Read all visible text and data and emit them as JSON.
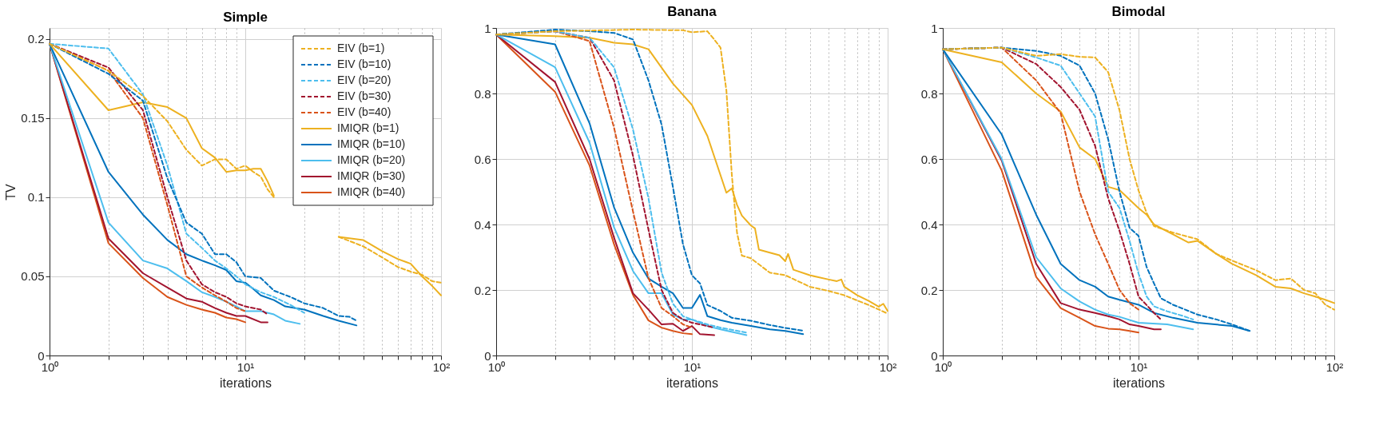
{
  "chart_data": [
    {
      "type": "line",
      "title": "Simple",
      "xlabel": "iterations",
      "ylabel": "TV",
      "log": "x",
      "grid": true,
      "legend": "top right",
      "xlim": [
        1,
        100
      ],
      "ylim": [
        0,
        0.207
      ],
      "xticks": [
        {
          "value": 1,
          "label": "10⁰"
        },
        {
          "value": 2,
          "label": null
        },
        {
          "value": 3,
          "label": null
        },
        {
          "value": 4,
          "label": null
        },
        {
          "value": 5,
          "label": null
        },
        {
          "value": 6,
          "label": null
        },
        {
          "value": 7,
          "label": null
        },
        {
          "value": 8,
          "label": null
        },
        {
          "value": 9,
          "label": null
        },
        {
          "value": 10,
          "label": "10¹"
        },
        {
          "value": 20,
          "label": null
        },
        {
          "value": 30,
          "label": null
        },
        {
          "value": 40,
          "label": null
        },
        {
          "value": 50,
          "label": null
        },
        {
          "value": 60,
          "label": null
        },
        {
          "value": 70,
          "label": null
        },
        {
          "value": 80,
          "label": null
        },
        {
          "value": 90,
          "label": null
        },
        {
          "value": 100,
          "label": "10²"
        }
      ],
      "yticks": [
        0,
        0.05,
        0.1,
        0.15,
        0.2
      ],
      "series": [
        {
          "name": "EIV (b=1)",
          "color": "#edb120",
          "line_style": "dashed",
          "x": [
            1,
            2,
            3,
            4,
            5,
            6,
            7,
            8,
            9,
            10,
            11,
            12,
            13,
            14,
            20,
            30,
            40,
            50,
            60,
            70,
            80,
            90,
            100
          ],
          "values": [
            0.197,
            0.18,
            0.164,
            0.148,
            0.13,
            0.12,
            0.124,
            0.124,
            0.118,
            0.12,
            0.116,
            0.113,
            0.105,
            0.1,
            null,
            0.075,
            0.069,
            0.062,
            0.056,
            0.053,
            0.051,
            0.047,
            0.046
          ]
        },
        {
          "name": "EIV (b=10)",
          "color": "#0072bd",
          "line_style": "dashed",
          "x": [
            1,
            2,
            3,
            4,
            5,
            6,
            7,
            8,
            9,
            10,
            12,
            14,
            17,
            20,
            25,
            30,
            34,
            37
          ],
          "values": [
            0.197,
            0.178,
            0.161,
            0.112,
            0.084,
            0.077,
            0.064,
            0.064,
            0.059,
            0.05,
            0.049,
            0.041,
            0.037,
            0.033,
            0.03,
            0.025,
            0.0245,
            0.022
          ]
        },
        {
          "name": "EIV (b=20)",
          "color": "#4dbeee",
          "line_style": "dashed",
          "x": [
            1,
            2,
            3,
            4,
            5,
            6,
            7,
            8,
            9,
            10,
            12,
            14,
            17,
            20
          ],
          "values": [
            0.197,
            0.194,
            0.165,
            0.12,
            0.077,
            0.068,
            0.06,
            0.055,
            0.05,
            0.045,
            0.04,
            0.037,
            0.032,
            0.027
          ]
        },
        {
          "name": "EIV (b=30)",
          "color": "#a2142f",
          "line_style": "dashed",
          "x": [
            1,
            2,
            3,
            4,
            5,
            6,
            7,
            8,
            9,
            10,
            12,
            13
          ],
          "values": [
            0.197,
            0.182,
            0.155,
            0.1,
            0.06,
            0.045,
            0.04,
            0.037,
            0.033,
            0.031,
            0.029,
            0.026
          ]
        },
        {
          "name": "EIV (b=40)",
          "color": "#d95319",
          "line_style": "dashed",
          "x": [
            1,
            2,
            3,
            4,
            5,
            6,
            7,
            8,
            9,
            10
          ],
          "values": [
            0.197,
            0.18,
            0.15,
            0.095,
            0.05,
            0.043,
            0.038,
            0.034,
            0.03,
            0.028
          ]
        },
        {
          "name": "IMIQR (b=1)",
          "color": "#edb120",
          "line_style": "solid",
          "x": [
            1,
            2,
            3,
            4,
            5,
            6,
            7,
            8,
            9,
            10,
            11,
            12,
            13,
            14,
            20,
            30,
            40,
            50,
            60,
            70,
            80,
            90,
            100
          ],
          "values": [
            0.197,
            0.155,
            0.16,
            0.157,
            0.15,
            0.131,
            0.125,
            0.116,
            0.117,
            0.117,
            0.118,
            0.118,
            0.11,
            0.101,
            null,
            0.075,
            0.073,
            0.066,
            0.061,
            0.058,
            0.05,
            0.044,
            0.038
          ]
        },
        {
          "name": "IMIQR (b=10)",
          "color": "#0072bd",
          "line_style": "solid",
          "x": [
            1,
            2,
            3,
            4,
            5,
            6,
            7,
            8,
            9,
            10,
            11,
            12,
            14,
            16,
            20,
            25,
            30,
            37
          ],
          "values": [
            0.197,
            0.116,
            0.089,
            0.073,
            0.064,
            0.06,
            0.057,
            0.054,
            0.047,
            0.046,
            0.042,
            0.038,
            0.035,
            0.031,
            0.029,
            0.025,
            0.022,
            0.019
          ]
        },
        {
          "name": "IMIQR (b=20)",
          "color": "#4dbeee",
          "line_style": "solid",
          "x": [
            1,
            2,
            3,
            4,
            5,
            6,
            7,
            8,
            9,
            10,
            12,
            14,
            16,
            19
          ],
          "values": [
            0.197,
            0.084,
            0.06,
            0.055,
            0.047,
            0.04,
            0.037,
            0.034,
            0.031,
            0.028,
            0.028,
            0.026,
            0.022,
            0.02
          ]
        },
        {
          "name": "IMIQR (b=30)",
          "color": "#a2142f",
          "line_style": "solid",
          "x": [
            1,
            2,
            3,
            4,
            5,
            6,
            7,
            8,
            9,
            10,
            12,
            13
          ],
          "values": [
            0.197,
            0.074,
            0.052,
            0.043,
            0.036,
            0.034,
            0.03,
            0.027,
            0.025,
            0.025,
            0.021,
            0.021
          ]
        },
        {
          "name": "IMIQR (b=40)",
          "color": "#d95319",
          "line_style": "solid",
          "x": [
            1,
            2,
            3,
            4,
            5,
            6,
            7,
            8,
            9,
            10
          ],
          "values": [
            0.197,
            0.071,
            0.049,
            0.037,
            0.032,
            0.029,
            0.027,
            0.024,
            0.023,
            0.021
          ]
        }
      ]
    },
    {
      "type": "line",
      "title": "Banana",
      "xlabel": "iterations",
      "log": "x",
      "grid": true,
      "xlim": [
        1,
        100
      ],
      "ylim": [
        0,
        1
      ],
      "xticks": [
        {
          "value": 1,
          "label": "10⁰"
        },
        {
          "value": 2,
          "label": null
        },
        {
          "value": 3,
          "label": null
        },
        {
          "value": 4,
          "label": null
        },
        {
          "value": 5,
          "label": null
        },
        {
          "value": 6,
          "label": null
        },
        {
          "value": 7,
          "label": null
        },
        {
          "value": 8,
          "label": null
        },
        {
          "value": 9,
          "label": null
        },
        {
          "value": 10,
          "label": "10¹"
        },
        {
          "value": 20,
          "label": null
        },
        {
          "value": 30,
          "label": null
        },
        {
          "value": 40,
          "label": null
        },
        {
          "value": 50,
          "label": null
        },
        {
          "value": 60,
          "label": null
        },
        {
          "value": 70,
          "label": null
        },
        {
          "value": 80,
          "label": null
        },
        {
          "value": 90,
          "label": null
        },
        {
          "value": 100,
          "label": "10²"
        }
      ],
      "yticks": [
        0,
        0.2,
        0.4,
        0.6,
        0.8,
        1
      ],
      "series": [
        {
          "color": "#edb120",
          "line_style": "dashed",
          "x": [
            1,
            2,
            5,
            9,
            10,
            12,
            13,
            14,
            15,
            16,
            17,
            18,
            20,
            25,
            30,
            40,
            50,
            60,
            80,
            100
          ],
          "values": [
            0.98,
            0.99,
            0.995,
            0.993,
            0.987,
            0.99,
            0.965,
            0.94,
            0.81,
            0.55,
            0.375,
            0.305,
            0.297,
            0.253,
            0.245,
            0.21,
            0.197,
            0.184,
            0.154,
            0.128
          ]
        },
        {
          "color": "#0072bd",
          "line_style": "dashed",
          "x": [
            1,
            2,
            3,
            4,
            5,
            6,
            7,
            8,
            9,
            10,
            11,
            12,
            14,
            16,
            20,
            25,
            30,
            37
          ],
          "values": [
            0.98,
            0.995,
            0.99,
            0.985,
            0.965,
            0.84,
            0.705,
            0.514,
            0.34,
            0.245,
            0.22,
            0.154,
            0.136,
            0.115,
            0.106,
            0.093,
            0.084,
            0.076
          ]
        },
        {
          "color": "#4dbeee",
          "line_style": "dashed",
          "x": [
            1,
            2,
            3,
            4,
            5,
            6,
            7,
            8,
            9,
            10,
            12,
            14,
            19
          ],
          "values": [
            0.98,
            0.99,
            0.97,
            0.88,
            0.69,
            0.48,
            0.253,
            0.158,
            0.12,
            0.11,
            0.095,
            0.085,
            0.07
          ]
        },
        {
          "color": "#a2142f",
          "line_style": "dashed",
          "x": [
            1,
            2,
            3,
            4,
            5,
            6,
            7,
            8,
            9,
            10,
            12,
            13
          ],
          "values": [
            0.98,
            0.99,
            0.97,
            0.84,
            0.61,
            0.384,
            0.2,
            0.13,
            0.11,
            0.1,
            0.09,
            0.085
          ]
        },
        {
          "color": "#d95319",
          "line_style": "dashed",
          "x": [
            1,
            2,
            3,
            4,
            5,
            6,
            7,
            8,
            9,
            10
          ],
          "values": [
            0.98,
            0.99,
            0.96,
            0.696,
            0.44,
            0.236,
            0.145,
            0.12,
            0.095,
            0.085
          ]
        },
        {
          "color": "#edb120",
          "line_style": "solid",
          "x": [
            1,
            2,
            3,
            4,
            5,
            6,
            8,
            10,
            12,
            15,
            16,
            17,
            18,
            20,
            21,
            22,
            25,
            28,
            30,
            31,
            33,
            40,
            50,
            55,
            58,
            60,
            70,
            80,
            90,
            95,
            100
          ],
          "values": [
            0.98,
            0.975,
            0.97,
            0.955,
            0.95,
            0.935,
            0.83,
            0.765,
            0.67,
            0.497,
            0.51,
            0.46,
            0.427,
            0.397,
            0.388,
            0.323,
            0.314,
            0.306,
            0.288,
            0.31,
            0.262,
            0.245,
            0.232,
            0.227,
            0.232,
            0.21,
            0.184,
            0.167,
            0.149,
            0.158,
            0.136
          ]
        },
        {
          "color": "#0072bd",
          "line_style": "solid",
          "x": [
            1,
            2,
            3,
            4,
            5,
            6,
            7,
            8,
            9,
            10,
            11,
            12,
            14,
            16,
            20,
            25,
            30,
            37
          ],
          "values": [
            0.98,
            0.95,
            0.709,
            0.453,
            0.314,
            0.235,
            0.21,
            0.19,
            0.145,
            0.145,
            0.185,
            0.12,
            0.108,
            0.1,
            0.09,
            0.08,
            0.075,
            0.065
          ]
        },
        {
          "color": "#4dbeee",
          "line_style": "solid",
          "x": [
            1,
            2,
            3,
            4,
            5,
            6,
            7,
            8,
            9,
            10,
            12,
            14,
            19
          ],
          "values": [
            0.98,
            0.88,
            0.65,
            0.392,
            0.258,
            0.19,
            0.19,
            0.125,
            0.11,
            0.11,
            0.09,
            0.08,
            0.062
          ]
        },
        {
          "color": "#a2142f",
          "line_style": "solid",
          "x": [
            1,
            2,
            3,
            4,
            5,
            6,
            7,
            8,
            9,
            10,
            11,
            13
          ],
          "values": [
            0.98,
            0.835,
            0.6,
            0.36,
            0.19,
            0.14,
            0.095,
            0.097,
            0.075,
            0.09,
            0.065,
            0.062
          ]
        },
        {
          "color": "#d95319",
          "line_style": "solid",
          "x": [
            1,
            2,
            3,
            4,
            5,
            6,
            7,
            8,
            9,
            10
          ],
          "values": [
            0.98,
            0.805,
            0.58,
            0.34,
            0.185,
            0.107,
            0.085,
            0.075,
            0.068,
            0.065
          ]
        }
      ]
    },
    {
      "type": "line",
      "title": "Bimodal",
      "xlabel": "iterations",
      "log": "x",
      "grid": true,
      "xlim": [
        1,
        100
      ],
      "ylim": [
        0,
        1
      ],
      "xticks": [
        {
          "value": 1,
          "label": "10⁰"
        },
        {
          "value": 2,
          "label": null
        },
        {
          "value": 3,
          "label": null
        },
        {
          "value": 4,
          "label": null
        },
        {
          "value": 5,
          "label": null
        },
        {
          "value": 6,
          "label": null
        },
        {
          "value": 7,
          "label": null
        },
        {
          "value": 8,
          "label": null
        },
        {
          "value": 9,
          "label": null
        },
        {
          "value": 10,
          "label": "10¹"
        },
        {
          "value": 20,
          "label": null
        },
        {
          "value": 30,
          "label": null
        },
        {
          "value": 40,
          "label": null
        },
        {
          "value": 50,
          "label": null
        },
        {
          "value": 60,
          "label": null
        },
        {
          "value": 70,
          "label": null
        },
        {
          "value": 80,
          "label": null
        },
        {
          "value": 90,
          "label": null
        },
        {
          "value": 100,
          "label": "10²"
        }
      ],
      "yticks": [
        0,
        0.2,
        0.4,
        0.6,
        0.8,
        1
      ],
      "series": [
        {
          "color": "#edb120",
          "line_style": "dashed",
          "x": [
            1,
            2,
            3,
            4,
            5,
            6,
            7,
            8,
            9,
            10,
            11,
            12,
            15,
            20,
            25,
            30,
            40,
            50,
            60,
            70,
            80,
            90,
            100
          ],
          "values": [
            0.935,
            0.94,
            0.915,
            0.92,
            0.912,
            0.91,
            0.865,
            0.748,
            0.6,
            0.504,
            0.435,
            0.395,
            0.375,
            0.355,
            0.31,
            0.29,
            0.26,
            0.23,
            0.235,
            0.2,
            0.19,
            0.155,
            0.14
          ]
        },
        {
          "color": "#0072bd",
          "line_style": "dashed",
          "x": [
            1,
            2,
            3,
            4,
            5,
            6,
            7,
            8,
            9,
            10,
            11,
            12,
            13,
            15,
            20,
            25,
            30,
            37
          ],
          "values": [
            0.935,
            0.94,
            0.93,
            0.915,
            0.885,
            0.8,
            0.66,
            0.5,
            0.39,
            0.365,
            0.27,
            0.22,
            0.175,
            0.155,
            0.125,
            0.11,
            0.095,
            0.075
          ]
        },
        {
          "color": "#4dbeee",
          "line_style": "dashed",
          "x": [
            1,
            2,
            3,
            4,
            5,
            6,
            7,
            8,
            9,
            10,
            11,
            12,
            14,
            17,
            19
          ],
          "values": [
            0.935,
            0.94,
            0.91,
            0.885,
            0.8,
            0.73,
            0.5,
            0.45,
            0.35,
            0.25,
            0.18,
            0.15,
            0.135,
            0.12,
            0.11
          ]
        },
        {
          "color": "#a2142f",
          "line_style": "dashed",
          "x": [
            1,
            2,
            3,
            4,
            5,
            6,
            7,
            8,
            9,
            10,
            12,
            13
          ],
          "values": [
            0.935,
            0.94,
            0.89,
            0.82,
            0.75,
            0.64,
            0.48,
            0.38,
            0.28,
            0.18,
            0.13,
            0.11
          ]
        },
        {
          "color": "#d95319",
          "line_style": "dashed",
          "x": [
            1,
            2,
            3,
            4,
            5,
            6,
            7,
            8,
            9,
            10
          ],
          "values": [
            0.935,
            0.94,
            0.84,
            0.74,
            0.5,
            0.37,
            0.28,
            0.2,
            0.16,
            0.14
          ]
        },
        {
          "color": "#edb120",
          "line_style": "solid",
          "x": [
            1,
            2,
            3,
            4,
            5,
            6,
            7,
            8,
            10,
            11,
            12,
            15,
            18,
            20,
            25,
            30,
            40,
            50,
            60,
            70,
            80,
            90,
            100
          ],
          "values": [
            0.935,
            0.895,
            0.8,
            0.745,
            0.635,
            0.6,
            0.515,
            0.505,
            0.45,
            0.43,
            0.4,
            0.37,
            0.345,
            0.35,
            0.31,
            0.28,
            0.245,
            0.21,
            0.205,
            0.19,
            0.18,
            0.17,
            0.16
          ]
        },
        {
          "color": "#0072bd",
          "line_style": "solid",
          "x": [
            1,
            2,
            3,
            4,
            5,
            6,
            7,
            8,
            10,
            12,
            15,
            20,
            30,
            37
          ],
          "values": [
            0.935,
            0.675,
            0.43,
            0.28,
            0.23,
            0.21,
            0.18,
            0.17,
            0.155,
            0.13,
            0.115,
            0.1,
            0.09,
            0.075
          ]
        },
        {
          "color": "#4dbeee",
          "line_style": "solid",
          "x": [
            1,
            2,
            3,
            4,
            5,
            6,
            7,
            8,
            10,
            14,
            19
          ],
          "values": [
            0.935,
            0.6,
            0.3,
            0.205,
            0.165,
            0.14,
            0.125,
            0.118,
            0.1,
            0.095,
            0.08
          ]
        },
        {
          "color": "#a2142f",
          "line_style": "solid",
          "x": [
            1,
            2,
            3,
            4,
            5,
            6,
            7,
            8,
            9,
            10,
            12,
            13
          ],
          "values": [
            0.935,
            0.595,
            0.28,
            0.16,
            0.14,
            0.13,
            0.12,
            0.11,
            0.095,
            0.09,
            0.08,
            0.08
          ]
        },
        {
          "color": "#d95319",
          "line_style": "solid",
          "x": [
            1,
            2,
            3,
            4,
            5,
            6,
            7,
            8,
            9,
            10
          ],
          "values": [
            0.935,
            0.565,
            0.24,
            0.145,
            0.115,
            0.09,
            0.082,
            0.08,
            0.075,
            0.07
          ]
        }
      ]
    }
  ]
}
